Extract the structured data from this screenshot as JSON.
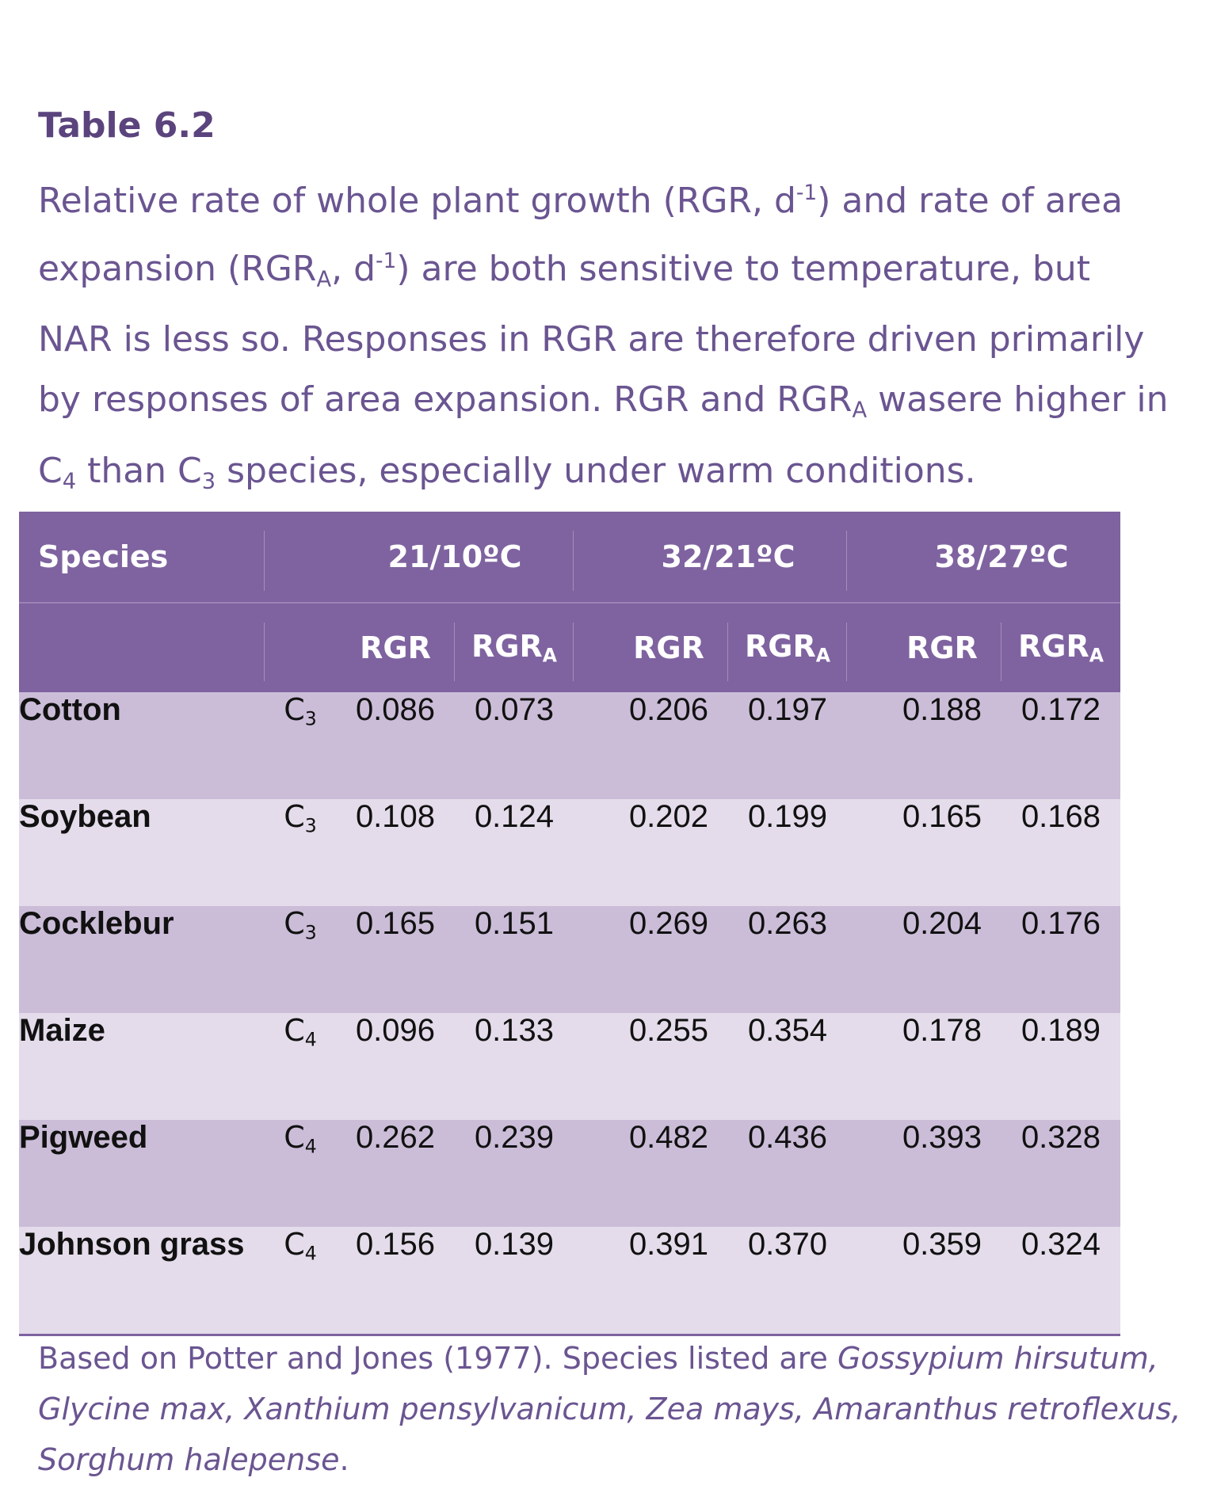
{
  "title": "Table 6.2",
  "caption": {
    "line1_a": "Relative rate of whole plant growth (RGR, d",
    "line1_sup": "-1",
    "line1_b": ") and rate of area",
    "line2_a": "expansion (RGR",
    "line2_sub": "A",
    "line2_b": ", d",
    "line2_sup": "-1",
    "line2_c": ") are both sensitive to temperature, but",
    "line3": "NAR is less so. Responses in RGR are therefore driven primarily",
    "line4_a": "by responses of area expansion. RGR and RGR",
    "line4_sub": "A",
    "line4_b": " wasere higher in",
    "line5_a": "C",
    "line5_sub1": "4",
    "line5_b": " than C",
    "line5_sub2": "3",
    "line5_c": " species, especially under warm conditions."
  },
  "table": {
    "species_header": "Species",
    "temps": [
      "21/10ºC",
      "32/21ºC",
      "38/27ºC"
    ],
    "rgr_label": "RGR",
    "rgra_label": "RGR",
    "rgra_sub": "A",
    "rows": [
      {
        "species": "Cotton",
        "type": "C",
        "type_sub": "3",
        "v": [
          "0.086",
          "0.073",
          "0.206",
          "0.197",
          "0.188",
          "0.172"
        ]
      },
      {
        "species": "Soybean",
        "type": "C",
        "type_sub": "3",
        "v": [
          "0.108",
          "0.124",
          "0.202",
          "0.199",
          "0.165",
          "0.168"
        ]
      },
      {
        "species": "Cocklebur",
        "type": "C",
        "type_sub": "3",
        "v": [
          "0.165",
          "0.151",
          "0.269",
          "0.263",
          "0.204",
          "0.176"
        ]
      },
      {
        "species": "Maize",
        "type": "C",
        "type_sub": "4",
        "v": [
          "0.096",
          "0.133",
          "0.255",
          "0.354",
          "0.178",
          "0.189"
        ]
      },
      {
        "species": "Pigweed",
        "type": "C",
        "type_sub": "4",
        "v": [
          "0.262",
          "0.239",
          "0.482",
          "0.436",
          "0.393",
          "0.328"
        ]
      },
      {
        "species": "Johnson grass",
        "type": "C",
        "type_sub": "4",
        "v": [
          "0.156",
          "0.139",
          "0.391",
          "0.370",
          "0.359",
          "0.324"
        ]
      }
    ]
  },
  "footnote": {
    "prefix": "Based on Potter and Jones (1977). Species listed are ",
    "italic1": "Gossypium hirsutum,",
    "italic2": "Glycine max, Xanthium pensylvanicum, Zea mays, Amaranthus retroflexus,",
    "italic3": "Sorghum halepense",
    "suffix": "."
  }
}
